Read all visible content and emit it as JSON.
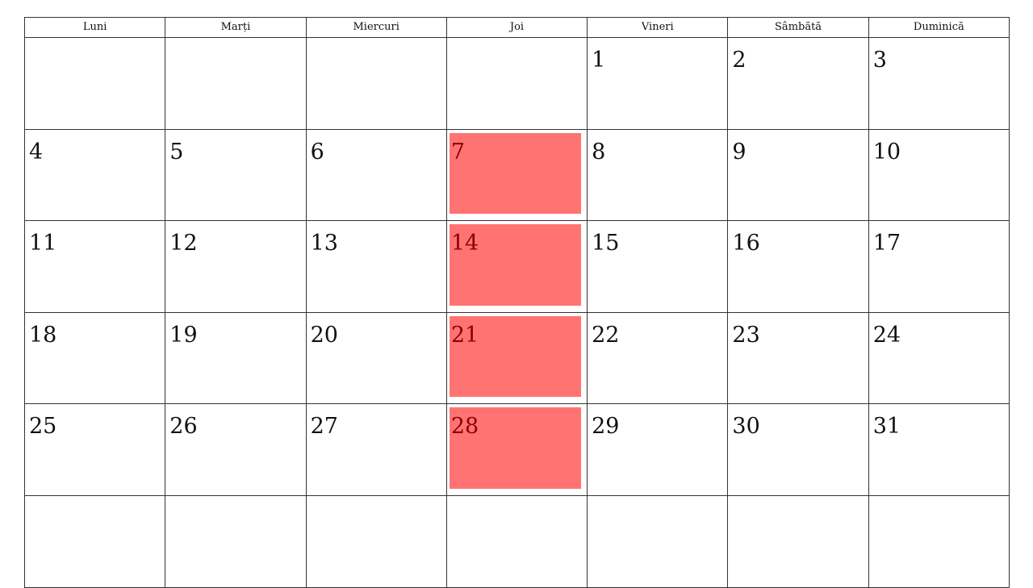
{
  "weekdays": [
    "Luni",
    "Marți",
    "Miercuri",
    "Joi",
    "Vineri",
    "Sâmbătă",
    "Duminică"
  ],
  "weeks": [
    [
      "",
      "",
      "",
      "",
      "1",
      "2",
      "3"
    ],
    [
      "4",
      "5",
      "6",
      "7",
      "8",
      "9",
      "10"
    ],
    [
      "11",
      "12",
      "13",
      "14",
      "15",
      "16",
      "17"
    ],
    [
      "18",
      "19",
      "20",
      "21",
      "22",
      "23",
      "24"
    ],
    [
      "25",
      "26",
      "27",
      "28",
      "29",
      "30",
      "31"
    ],
    [
      "",
      "",
      "",
      "",
      "",
      "",
      ""
    ]
  ],
  "highlighted_days": [
    "7",
    "14",
    "21",
    "28"
  ],
  "colors": {
    "highlight": "#ff7373",
    "highlight_text": "#8b0000",
    "grid": "#333333"
  }
}
